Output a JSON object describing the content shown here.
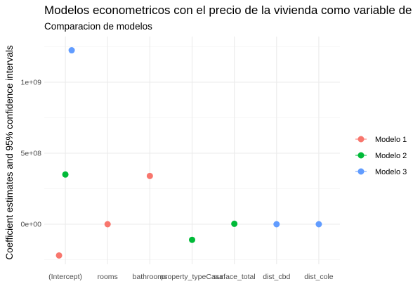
{
  "chart_data": {
    "type": "scatter",
    "title": "Modelos econometricos con el precio de la vivienda como variable de",
    "subtitle": "Comparacion de modelos",
    "xlabel": "",
    "ylabel": "Coefficient estimates and 95% confidence intervals",
    "categories": [
      "(Intercept)",
      "rooms",
      "bathrooms",
      "property_typeCasa",
      "surface_total",
      "dist_cbd",
      "dist_cole"
    ],
    "ylim": [
      -250000000,
      1250000000
    ],
    "y_ticks": [
      0,
      500000000,
      1000000000
    ],
    "y_tick_labels": [
      "0e+00",
      "5e+08",
      "1e+09"
    ],
    "grid": true,
    "legend_position": "right",
    "series": [
      {
        "name": "Modelo 1",
        "color": "#F8766D",
        "points": [
          {
            "category": "(Intercept)",
            "value": -220000000,
            "offset": -1
          },
          {
            "category": "rooms",
            "value": 0,
            "offset": 0
          },
          {
            "category": "bathrooms",
            "value": 340000000,
            "offset": 0
          }
        ]
      },
      {
        "name": "Modelo 2",
        "color": "#00BA38",
        "points": [
          {
            "category": "(Intercept)",
            "value": 350000000,
            "offset": 0
          },
          {
            "category": "property_typeCasa",
            "value": -110000000,
            "offset": 0
          },
          {
            "category": "surface_total",
            "value": 3000000,
            "offset": 0
          }
        ]
      },
      {
        "name": "Modelo 3",
        "color": "#619CFF",
        "points": [
          {
            "category": "(Intercept)",
            "value": 1225000000,
            "offset": 1
          },
          {
            "category": "dist_cbd",
            "value": 0,
            "offset": 0
          },
          {
            "category": "dist_cole",
            "value": 0,
            "offset": 0
          }
        ]
      }
    ]
  }
}
